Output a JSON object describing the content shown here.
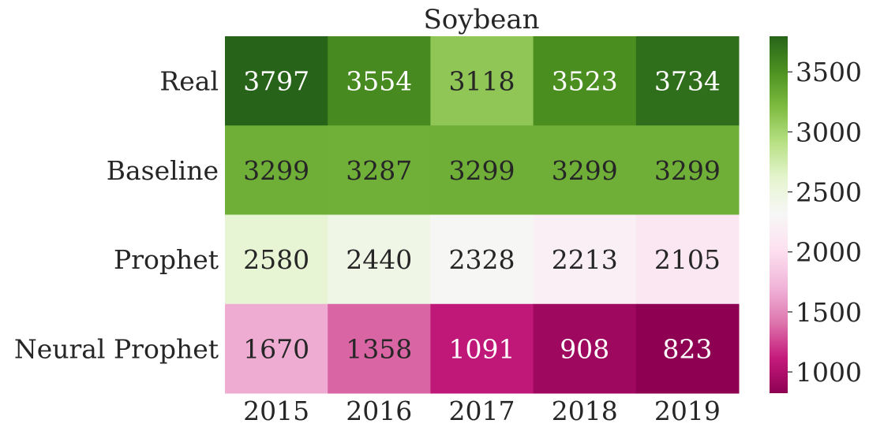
{
  "chart_data": {
    "type": "heatmap",
    "title": "Soybean",
    "xlabel": "",
    "ylabel": "",
    "x_categories": [
      "2015",
      "2016",
      "2017",
      "2018",
      "2019"
    ],
    "y_categories": [
      "Real",
      "Baseline",
      "Prophet",
      "Neural Prophet"
    ],
    "values": [
      [
        3797,
        3554,
        3118,
        3523,
        3734
      ],
      [
        3299,
        3287,
        3299,
        3299,
        3299
      ],
      [
        2580,
        2440,
        2328,
        2213,
        2105
      ],
      [
        1670,
        1358,
        1091,
        908,
        823
      ]
    ],
    "colormap": "PiYG",
    "vmin": 823,
    "vmax": 3797,
    "center": 2310,
    "colorbar_ticks": [
      1000,
      1500,
      2000,
      2500,
      3000,
      3500
    ],
    "colorbar_tick_labels": [
      "1000",
      "1500",
      "2000",
      "2500",
      "3000",
      "3500"
    ],
    "grid": false,
    "legend": "colorbar-right"
  }
}
